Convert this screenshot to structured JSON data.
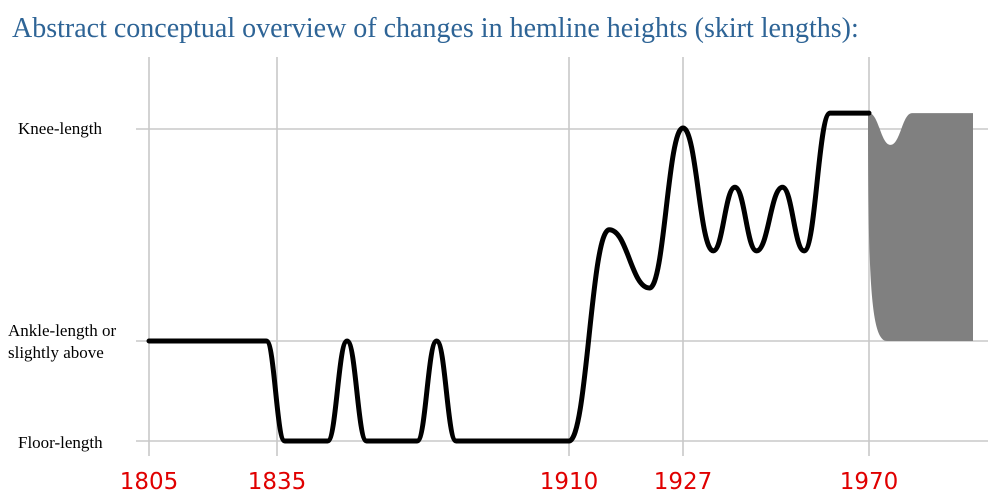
{
  "title": "Abstract conceptual overview of changes in hemline heights (skirt lengths):",
  "colors": {
    "title": "#2e6496",
    "x_tick_labels": "#e00000",
    "curve": "#000000",
    "band": "#808080",
    "grid": "#c8c8c8"
  },
  "chart_data": {
    "type": "line",
    "title": "Abstract conceptual overview of changes in hemline heights (skirt lengths):",
    "xlabel": "",
    "ylabel": "",
    "grid": true,
    "x_ticks": [
      {
        "value": 1805,
        "label": "1805"
      },
      {
        "value": 1835,
        "label": "1835"
      },
      {
        "value": 1910,
        "label": "1910"
      },
      {
        "value": 1927,
        "label": "1927"
      },
      {
        "value": 1970,
        "label": "1970"
      }
    ],
    "y_levels": [
      {
        "value": 0,
        "label": "Floor-length"
      },
      {
        "value": 1,
        "label": "Ankle-length or slightly above"
      },
      {
        "value": 3,
        "label": "Knee-length"
      }
    ],
    "xlim": [
      1805,
      1999
    ],
    "ylim": [
      0,
      3.4
    ],
    "series": [
      {
        "values": [
          {
            "x": 1805,
            "y": 1.0
          },
          {
            "x": 1832.5,
            "y": 1.0
          },
          {
            "x": 1837,
            "y": 0.0
          },
          {
            "x": 1848,
            "y": 0.0
          },
          {
            "x": 1853,
            "y": 1.0
          },
          {
            "x": 1858,
            "y": 0.0
          },
          {
            "x": 1871,
            "y": 0.0
          },
          {
            "x": 1876,
            "y": 1.0
          },
          {
            "x": 1881,
            "y": 0.0
          },
          {
            "x": 1910,
            "y": 0.0
          },
          {
            "x": 1916,
            "y": 2.05
          },
          {
            "x": 1922,
            "y": 1.5
          },
          {
            "x": 1927,
            "y": 3.01
          },
          {
            "x": 1934,
            "y": 1.85
          },
          {
            "x": 1939,
            "y": 2.45
          },
          {
            "x": 1944,
            "y": 1.85
          },
          {
            "x": 1950,
            "y": 2.45
          },
          {
            "x": 1955,
            "y": 1.85
          },
          {
            "x": 1961,
            "y": 3.15
          },
          {
            "x": 1970,
            "y": 3.15
          }
        ]
      }
    ],
    "range_band": {
      "x_start": 1970,
      "x_end": 1999,
      "upper": [
        {
          "x": 1970,
          "y": 3.15
        },
        {
          "x": 1976,
          "y": 2.85
        },
        {
          "x": 1982,
          "y": 3.15
        },
        {
          "x": 1999,
          "y": 3.15
        }
      ],
      "lower": {
        "y": 1.0
      }
    }
  }
}
